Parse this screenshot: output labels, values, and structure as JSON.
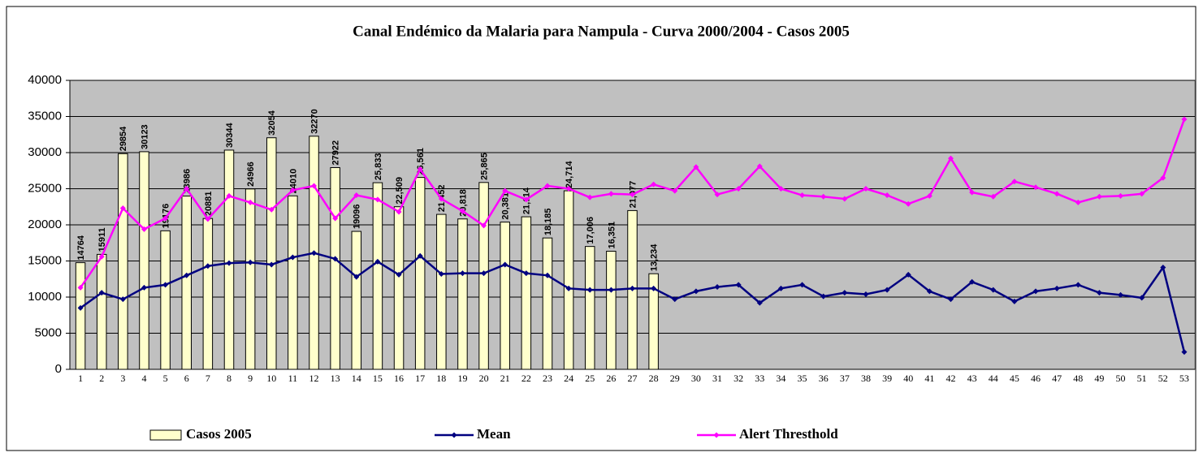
{
  "chart_data": {
    "type": "bar-line",
    "title": "Canal Endémico da Malaria para Nampula - Curva 2000/2004 - Casos 2005",
    "categories": [
      "1",
      "2",
      "3",
      "4",
      "5",
      "6",
      "7",
      "8",
      "9",
      "10",
      "11",
      "12",
      "13",
      "14",
      "15",
      "16",
      "17",
      "18",
      "19",
      "20",
      "21",
      "22",
      "23",
      "24",
      "25",
      "26",
      "27",
      "28",
      "29",
      "30",
      "31",
      "32",
      "33",
      "34",
      "35",
      "36",
      "37",
      "38",
      "39",
      "40",
      "41",
      "42",
      "43",
      "44",
      "45",
      "46",
      "47",
      "48",
      "49",
      "50",
      "51",
      "52",
      "53"
    ],
    "ylim": [
      0,
      40000
    ],
    "yticks": [
      0,
      5000,
      10000,
      15000,
      20000,
      25000,
      30000,
      35000,
      40000
    ],
    "grid": true,
    "legend": "bottom",
    "series": [
      {
        "name": "Casos 2005",
        "type": "bar",
        "color": "#ffffcc",
        "values": [
          14764,
          15911,
          29854,
          30123,
          19176,
          23986,
          20881,
          30344,
          24966,
          32054,
          24010,
          32270,
          27922,
          19096,
          25833,
          22509,
          26561,
          21452,
          20818,
          25865,
          20381,
          21114,
          18185,
          24714,
          17006,
          16351,
          21977,
          13234,
          null,
          null,
          null,
          null,
          null,
          null,
          null,
          null,
          null,
          null,
          null,
          null,
          null,
          null,
          null,
          null,
          null,
          null,
          null,
          null,
          null,
          null,
          null,
          null,
          null
        ],
        "value_labels": [
          "14764",
          "15911",
          "29854",
          "30123",
          "19176",
          "23986",
          "20881",
          "30344",
          "24966",
          "32054",
          "24010",
          "32270",
          "27922",
          "19096",
          "25,833",
          "22,509",
          "26,561",
          "21,452",
          "20,818",
          "25,865",
          "20,381",
          "21,114",
          "18,185",
          "24,714",
          "17,006",
          "16,351",
          "21,977",
          "13,234",
          null,
          null,
          null,
          null,
          null,
          null,
          null,
          null,
          null,
          null,
          null,
          null,
          null,
          null,
          null,
          null,
          null,
          null,
          null,
          null,
          null,
          null,
          null,
          null,
          null
        ]
      },
      {
        "name": "Mean",
        "type": "line",
        "color": "#000080",
        "values": [
          8500,
          10600,
          9700,
          11300,
          11700,
          13000,
          14300,
          14700,
          14800,
          14500,
          15500,
          16100,
          15300,
          12800,
          14900,
          13100,
          15700,
          13200,
          13300,
          13300,
          14500,
          13300,
          13000,
          11200,
          11000,
          11000,
          11200,
          11200,
          9700,
          10800,
          11400,
          11700,
          9200,
          11200,
          11700,
          10100,
          10600,
          10400,
          11000,
          13100,
          10800,
          9700,
          12100,
          11000,
          9400,
          10800,
          11200,
          11700,
          10600,
          10300,
          9900,
          14100,
          2400
        ]
      },
      {
        "name": "Alert Thresthold",
        "type": "line",
        "color": "#ff00ff",
        "values": [
          11300,
          15600,
          22300,
          19400,
          20900,
          25000,
          20800,
          24000,
          23100,
          22100,
          24800,
          25400,
          20900,
          24100,
          23500,
          21800,
          27700,
          23600,
          21900,
          19900,
          24700,
          23500,
          25400,
          25000,
          23800,
          24300,
          24200,
          25600,
          24700,
          28000,
          24200,
          25000,
          28100,
          25000,
          24100,
          23900,
          23600,
          25000,
          24100,
          22900,
          24000,
          29200,
          24500,
          23900,
          26000,
          25200,
          24300,
          23100,
          23900,
          24000,
          24300,
          26500,
          34600
        ]
      }
    ]
  }
}
